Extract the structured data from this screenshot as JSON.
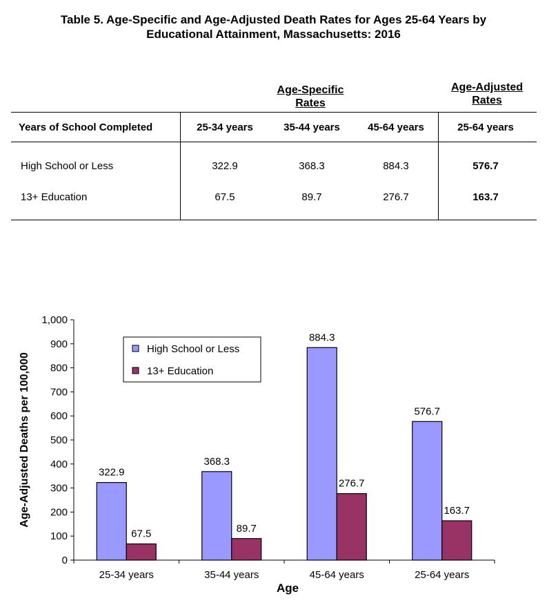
{
  "title": {
    "line1": "Table 5.  Age-Specific and Age-Adjusted Death Rates for Ages 25-64 Years by",
    "line2": "Educational Attainment, Massachusetts: 2016"
  },
  "table": {
    "group_header_specific_1": "Age-Specific",
    "group_header_specific_2": "Rates",
    "group_header_adjusted_1": "Age-Adjusted",
    "group_header_adjusted_2": "Rates",
    "col_header_label": "Years of School Completed",
    "col_headers": [
      "25-34 years",
      "35-44 years",
      "45-64 years",
      "25-64 years"
    ],
    "rows": [
      {
        "label": "High School or Less",
        "values": [
          "322.9",
          "368.3",
          "884.3",
          "576.7"
        ]
      },
      {
        "label": "13+ Education",
        "values": [
          "67.5",
          "89.7",
          "276.7",
          "163.7"
        ]
      }
    ]
  },
  "chart_data": {
    "type": "bar",
    "categories": [
      "25-34 years",
      "35-44 years",
      "45-64 years",
      "25-64 years"
    ],
    "series": [
      {
        "name": "High School or Less",
        "values": [
          322.9,
          368.3,
          884.3,
          576.7
        ],
        "labels": [
          "322.9",
          "368.3",
          "884.3",
          "576.7"
        ],
        "color": "#9999ff"
      },
      {
        "name": "13+ Education",
        "values": [
          67.5,
          89.7,
          276.7,
          163.7
        ],
        "labels": [
          "67.5",
          "89.7",
          "276.7",
          "163.7"
        ],
        "color": "#993366"
      }
    ],
    "xlabel": "Age",
    "ylabel": "Age-Adjusted Deaths per 100,000",
    "ylim": [
      0,
      1000
    ],
    "yticks": [
      0,
      100,
      200,
      300,
      400,
      500,
      600,
      700,
      800,
      900,
      1000
    ],
    "ytick_labels": [
      "0",
      "100",
      "200",
      "300",
      "400",
      "500",
      "600",
      "700",
      "800",
      "900",
      "1,000"
    ],
    "grid": false,
    "legend_position": "top-left"
  }
}
